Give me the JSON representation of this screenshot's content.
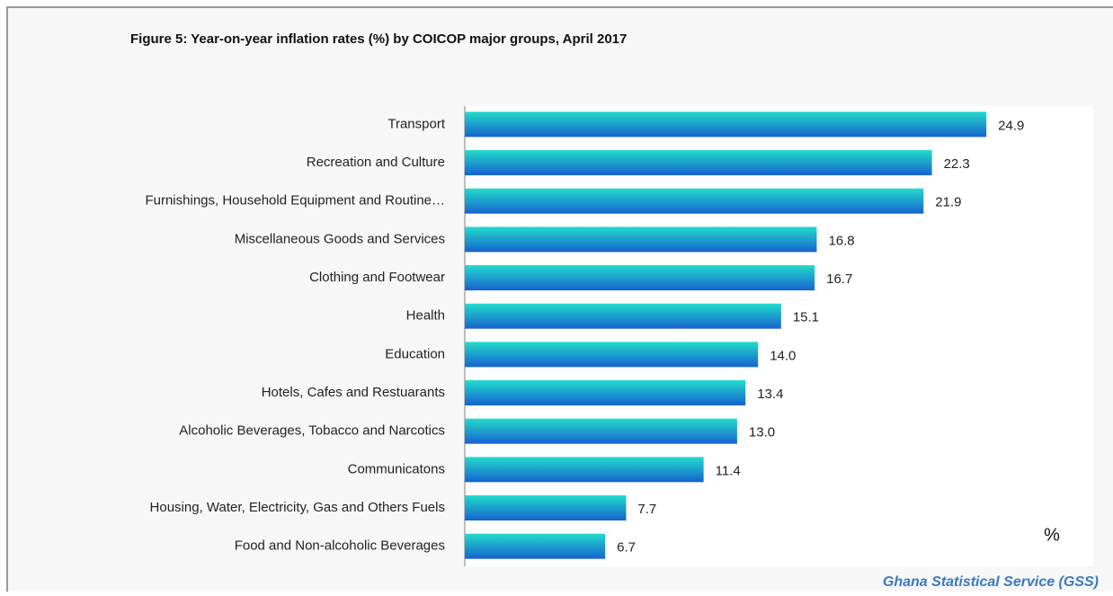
{
  "chart_data": {
    "type": "barh",
    "title": "Figure 5: Year-on-year inflation rates (%) by  COICOP  major groups, April  2017",
    "categories": [
      "Transport",
      "Recreation and Culture",
      "Furnishings, Household Equipment and Routine…",
      "Miscellaneous Goods and  Services",
      "Clothing and  Footwear",
      "Health",
      "Education",
      "Hotels, Cafes and  Restuarants",
      "Alcoholic Beverages, Tobacco and Narcotics",
      "Communicatons",
      "Housing, Water, Electricity, Gas and Others Fuels",
      "Food and Non-alcoholic Beverages"
    ],
    "values": [
      24.9,
      22.3,
      21.9,
      16.8,
      16.7,
      15.1,
      14.0,
      13.4,
      13.0,
      11.4,
      7.7,
      6.7
    ],
    "value_labels": [
      "24.9",
      "22.3",
      "21.9",
      "16.8",
      "16.7",
      "15.1",
      "14.0",
      "13.4",
      "13.0",
      "11.4",
      "7.7",
      "6.7"
    ],
    "xlim": [
      0,
      30
    ],
    "gradient": [
      "#22dccb",
      "#1762d0"
    ],
    "unit_label": "%",
    "source": "Ghana Statistical Service (GSS)"
  }
}
